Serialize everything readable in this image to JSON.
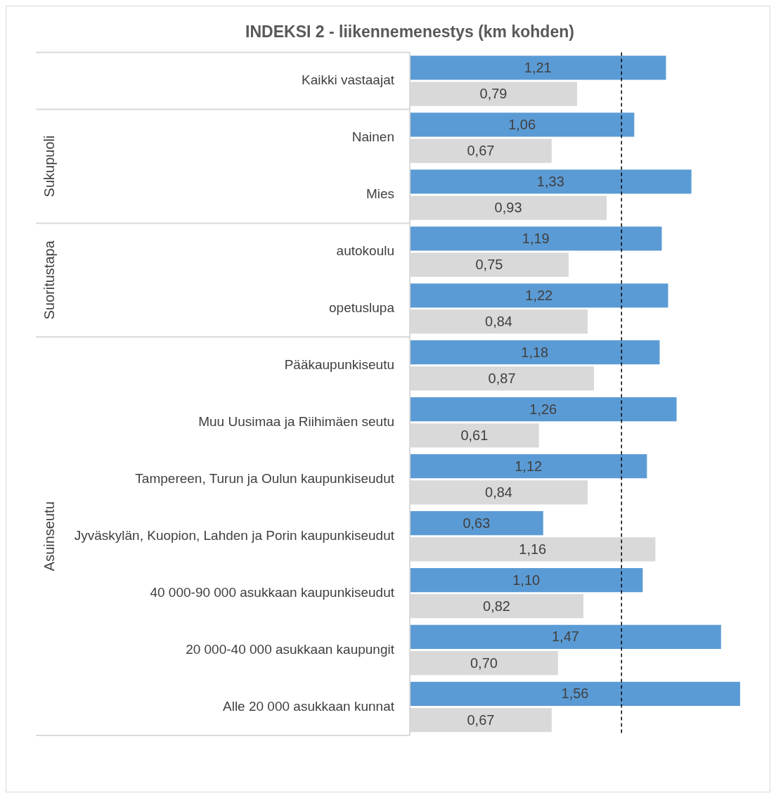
{
  "chart_data": {
    "type": "bar",
    "orientation": "horizontal",
    "title": "INDEKSI 2 - liikennemenestys (km kohden)",
    "categories": [
      "Kaikki vastaajat",
      "Nainen",
      "Mies",
      "autokoulu",
      "opetuslupa",
      "Pääkaupunkiseutu",
      "Muu Uusimaa ja Riihimäen seutu",
      "Tampereen, Turun ja Oulun kaupunkiseudut",
      "Jyväskylän, Kuopion, Lahden ja Porin kaupunkiseudut",
      "40 000-90 000 asukkaan kaupunkiseudut",
      "20 000-40 000 asukkaan kaupungit",
      "Alle 20 000 asukkaan kunnat"
    ],
    "series": [
      {
        "color": "#5b9bd5",
        "values": [
          1.21,
          1.06,
          1.33,
          1.19,
          1.22,
          1.18,
          1.26,
          1.12,
          0.63,
          1.1,
          1.47,
          1.56
        ],
        "value_labels": [
          "1,21",
          "1,06",
          "1,33",
          "1,19",
          "1,22",
          "1,18",
          "1,26",
          "1,12",
          "0,63",
          "1,10",
          "1,47",
          "1,56"
        ]
      },
      {
        "color": "#d9d9d9",
        "values": [
          0.79,
          0.67,
          0.93,
          0.75,
          0.84,
          0.87,
          0.61,
          0.84,
          1.16,
          0.82,
          0.7,
          0.67
        ],
        "value_labels": [
          "0,79",
          "0,67",
          "0,93",
          "0,75",
          "0,84",
          "0,87",
          "0,61",
          "0,84",
          "1,16",
          "0,82",
          "0,70",
          "0,67"
        ]
      }
    ],
    "tick_labels": "y",
    "ref_lines": [
      {
        "axis": "x",
        "value": 1,
        "color": "#000000",
        "line_style": "dashed"
      }
    ],
    "annotations": [
      "Sukupuoli",
      "Suoritustapa",
      "Asuinseutu"
    ]
  }
}
